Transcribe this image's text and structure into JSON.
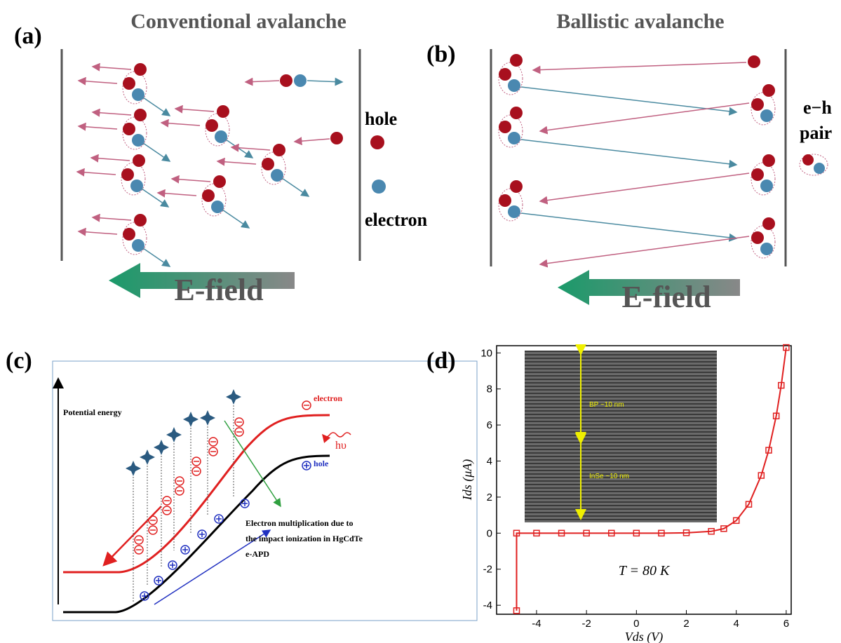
{
  "panels": {
    "a": {
      "label": "(a)",
      "title": "Conventional avalanche",
      "legend": [
        "hole",
        "electron"
      ],
      "field": "E-field"
    },
    "b": {
      "label": "(b)",
      "title": "Ballistic avalanche",
      "pair": [
        "e−h",
        "pair"
      ],
      "field": "E-field"
    },
    "c": {
      "label": "(c)",
      "axis": "Potential energy",
      "electron": "electron",
      "photon": "hυ",
      "hole": "hole",
      "caption": [
        "Electron multiplication due to",
        "the impact ionization in HgCdTe",
        "e-APD"
      ]
    },
    "d": {
      "label": "(d)"
    }
  },
  "chart_data": {
    "type": "line",
    "x_label": "Vds (V)",
    "y_label": "Ids (μA)",
    "annotation": "T = 80 K",
    "inset_labels": [
      "BP ~10 nm",
      "InSe ~10 nm"
    ],
    "x": [
      -4.8,
      -4.8,
      -4,
      -3,
      -2,
      -1,
      0,
      1,
      2,
      3,
      3.5,
      4,
      4.5,
      5,
      5.3,
      5.6,
      5.8,
      6
    ],
    "series": [
      {
        "color": "#e02020",
        "values": [
          -4.3,
          0,
          0,
          0,
          0,
          0,
          0,
          0,
          0.02,
          0.1,
          0.25,
          0.7,
          1.6,
          3.2,
          4.6,
          6.5,
          8.2,
          10.3
        ]
      }
    ],
    "xlim": [
      -5.6,
      6.2
    ],
    "ylim": [
      -4.5,
      10.4
    ],
    "xticks": [
      -4,
      -2,
      0,
      2,
      4,
      6
    ],
    "yticks": [
      -4,
      -2,
      0,
      2,
      4,
      6,
      8,
      10
    ]
  }
}
